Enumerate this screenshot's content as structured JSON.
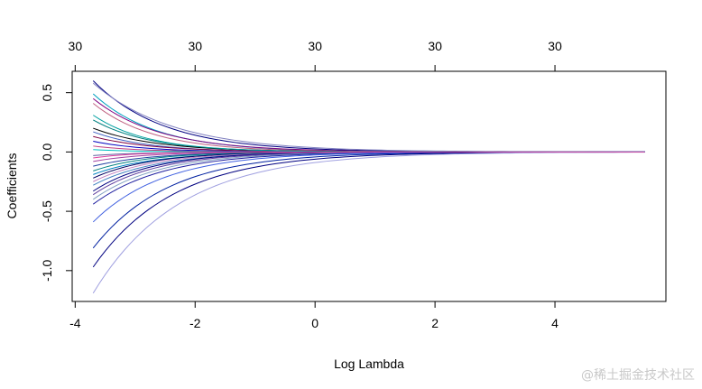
{
  "chart_data": {
    "type": "line",
    "xlabel": "Log Lambda",
    "ylabel": "Coefficients",
    "x_range": [
      -3.7,
      5.5
    ],
    "xlim": [
      -4.05,
      5.85
    ],
    "ylim": [
      -1.26,
      0.68
    ],
    "x_ticks": [
      -4,
      -2,
      0,
      2,
      4
    ],
    "x_tick_labels": [
      "-4",
      "-2",
      "0",
      "2",
      "4"
    ],
    "y_ticks": [
      -1.0,
      -0.5,
      0.0,
      0.5
    ],
    "y_tick_labels": [
      "-1.0",
      "-0.5",
      "0.0",
      "0.5"
    ],
    "top_axis_ticks": [
      -4,
      -2,
      0,
      2,
      4
    ],
    "top_axis_labels": [
      "30",
      "30",
      "30",
      "30",
      "30"
    ],
    "grid": false,
    "legend": "none",
    "series": [
      {
        "start": 0.6,
        "decay": 0.85,
        "color": "#000080"
      },
      {
        "start": 0.58,
        "decay": 0.75,
        "color": "#8080c0"
      },
      {
        "start": 0.49,
        "decay": 0.95,
        "color": "#00a0c0"
      },
      {
        "start": 0.45,
        "decay": 0.9,
        "color": "#800080"
      },
      {
        "start": 0.41,
        "decay": 1.0,
        "color": "#c06080"
      },
      {
        "start": 0.27,
        "decay": 1.05,
        "color": "#008080"
      },
      {
        "start": 0.2,
        "decay": 0.95,
        "color": "#000000"
      },
      {
        "start": 0.17,
        "decay": 1.1,
        "color": "#4060c0"
      },
      {
        "start": 0.13,
        "decay": 1.0,
        "color": "#800040"
      },
      {
        "start": 0.09,
        "decay": 1.15,
        "color": "#0000c0"
      },
      {
        "start": 0.05,
        "decay": 1.2,
        "color": "#c04080"
      },
      {
        "start": 0.02,
        "decay": 1.3,
        "color": "#00c0c0"
      },
      {
        "start": -0.03,
        "decay": 1.25,
        "color": "#6060a0"
      },
      {
        "start": -0.08,
        "decay": 1.15,
        "color": "#a040a0"
      },
      {
        "start": -0.12,
        "decay": 1.05,
        "color": "#2040a0"
      },
      {
        "start": -0.16,
        "decay": 1.1,
        "color": "#008080"
      },
      {
        "start": -0.19,
        "decay": 1.0,
        "color": "#0080c0"
      },
      {
        "start": -0.22,
        "decay": 1.05,
        "color": "#000060"
      },
      {
        "start": -0.25,
        "decay": 1.0,
        "color": "#c080c0"
      },
      {
        "start": -0.28,
        "decay": 0.95,
        "color": "#4080c0"
      },
      {
        "start": -0.33,
        "decay": 1.0,
        "color": "#000080"
      },
      {
        "start": -0.36,
        "decay": 0.95,
        "color": "#6040a0"
      },
      {
        "start": -0.4,
        "decay": 0.9,
        "color": "#80a0c0"
      },
      {
        "start": -0.44,
        "decay": 0.85,
        "color": "#2020a0"
      },
      {
        "start": -0.59,
        "decay": 0.85,
        "color": "#4060e0"
      },
      {
        "start": -0.81,
        "decay": 0.8,
        "color": "#0020a0"
      },
      {
        "start": -0.97,
        "decay": 0.75,
        "color": "#000080"
      },
      {
        "start": -1.19,
        "decay": 0.7,
        "color": "#a0a0e0"
      },
      {
        "start": 0.31,
        "decay": 1.1,
        "color": "#00a0a0"
      },
      {
        "start": -0.05,
        "decay": 1.4,
        "color": "#e040a0"
      }
    ]
  },
  "watermark": "@稀土掘金技术社区"
}
